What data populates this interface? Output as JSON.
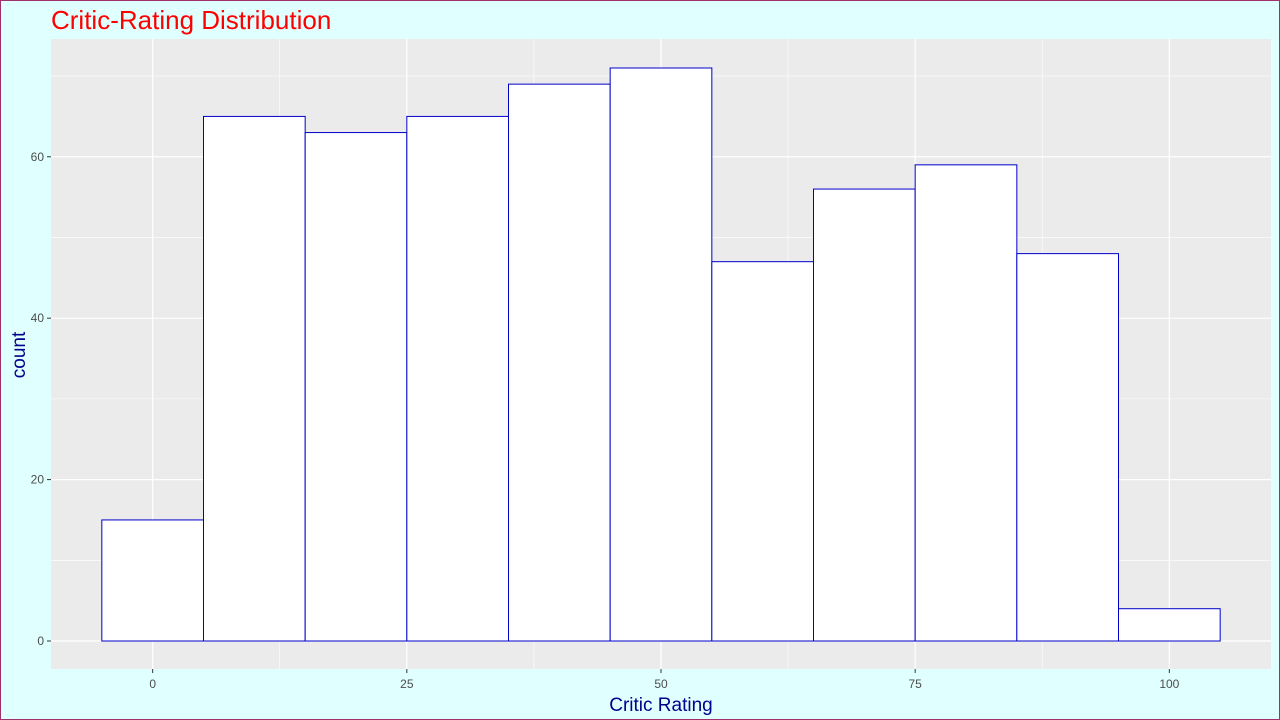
{
  "chart_data": {
    "type": "bar",
    "title": "Critic-Rating Distribution",
    "xlabel": "Critic Rating",
    "ylabel": "count",
    "bin_width": 10,
    "bins": [
      {
        "x0": -5,
        "x1": 5,
        "count": 15
      },
      {
        "x0": 5,
        "x1": 15,
        "count": 65
      },
      {
        "x0": 15,
        "x1": 25,
        "count": 63
      },
      {
        "x0": 25,
        "x1": 35,
        "count": 65
      },
      {
        "x0": 35,
        "x1": 45,
        "count": 69
      },
      {
        "x0": 45,
        "x1": 55,
        "count": 71
      },
      {
        "x0": 55,
        "x1": 65,
        "count": 47
      },
      {
        "x0": 65,
        "x1": 75,
        "count": 56
      },
      {
        "x0": 75,
        "x1": 85,
        "count": 59
      },
      {
        "x0": 85,
        "x1": 95,
        "count": 48
      },
      {
        "x0": 95,
        "x1": 105,
        "count": 4
      }
    ],
    "xlim": [
      -10,
      110
    ],
    "ylim": [
      0,
      75
    ],
    "x_ticks": [
      0,
      25,
      50,
      75,
      100
    ],
    "y_ticks": [
      0,
      20,
      40,
      60
    ],
    "grid": true,
    "colors": {
      "background": "#e0ffff",
      "panel": "#ebebeb",
      "grid": "#ffffff",
      "bar_fill": "#ffffff",
      "bar_outline": "#0000cd",
      "title": "#ff0000",
      "axis_title": "#00008b",
      "tick_label": "#4d4d4d"
    }
  }
}
